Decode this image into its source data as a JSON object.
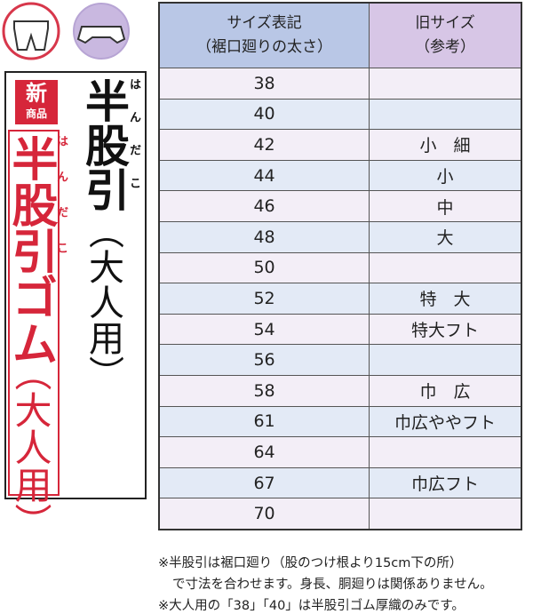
{
  "badge": {
    "top": "新",
    "bottom": "商品"
  },
  "title1": {
    "text": "半股引",
    "reading": "はんだこ",
    "sub": "（大人用）"
  },
  "title2": {
    "text": "半股引ゴム",
    "reading": "はんだこ",
    "sub": "（大人用）"
  },
  "table": {
    "header": [
      [
        "サイズ表記",
        "（裾口廻りの太さ）"
      ],
      [
        "旧サイズ",
        "（参考）"
      ]
    ],
    "rows": [
      {
        "size": 38
      },
      {
        "size": 40
      },
      {
        "size": 42,
        "old": "小　細"
      },
      {
        "size": 44,
        "old": "小"
      },
      {
        "size": 46,
        "old": "中"
      },
      {
        "size": 48,
        "old": "大"
      },
      {
        "size": 50
      },
      {
        "size": 52,
        "old": "特　大"
      },
      {
        "size": 54,
        "old": "特大フト"
      },
      {
        "size": 56
      },
      {
        "size": 58,
        "old": "巾　広"
      },
      {
        "size": 61,
        "old": "巾広ややフト"
      },
      {
        "size": 64
      },
      {
        "size": 67,
        "old": "巾広フト"
      },
      {
        "size": 70
      }
    ]
  },
  "notes": [
    "※半股引は裾口廻り（股のつけ根より15cm下の所）",
    "で寸法を合わせます。身長、胴廻りは関係ありません。",
    "※大人用の「38」「40」は半股引ゴム厚織のみです。"
  ]
}
